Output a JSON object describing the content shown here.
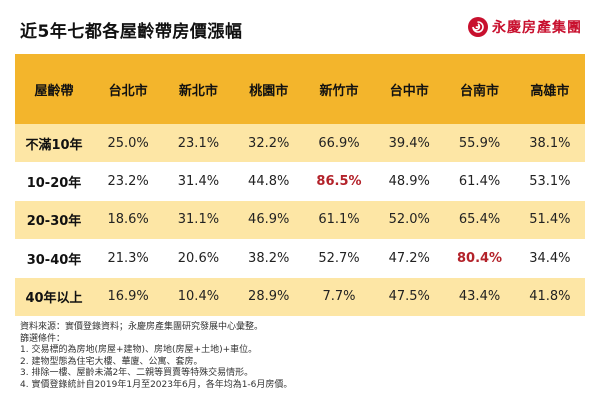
{
  "title": "近5年七都各屋齡帶房價漲幅",
  "brand": {
    "name": "永慶房產集團",
    "logo_icon": "swirl-logo-icon",
    "color": "#c8102e"
  },
  "table": {
    "headers": [
      "屋齡帶",
      "台北市",
      "新北市",
      "桃園市",
      "新竹市",
      "台中市",
      "台南市",
      "高雄市"
    ],
    "rows": [
      {
        "label": "不滿10年",
        "values": [
          "25.0%",
          "23.1%",
          "32.2%",
          "66.9%",
          "39.4%",
          "55.9%",
          "38.1%"
        ]
      },
      {
        "label": "10-20年",
        "values": [
          "23.2%",
          "31.4%",
          "44.8%",
          "86.5%",
          "48.9%",
          "61.4%",
          "53.1%"
        ]
      },
      {
        "label": "20-30年",
        "values": [
          "18.6%",
          "31.1%",
          "46.9%",
          "61.1%",
          "52.0%",
          "65.4%",
          "51.4%"
        ]
      },
      {
        "label": "30-40年",
        "values": [
          "21.3%",
          "20.6%",
          "38.2%",
          "52.7%",
          "47.2%",
          "80.4%",
          "34.4%"
        ]
      },
      {
        "label": "40年以上",
        "values": [
          "16.9%",
          "10.4%",
          "28.9%",
          "7.7%",
          "47.5%",
          "43.4%",
          "41.8%"
        ]
      }
    ],
    "header_color": "#f3b52c",
    "stripe_color": "#fde6a5",
    "highlight_color": "#b3222a"
  },
  "notes": [
    "資料來源：實價登錄資料；永慶房產集團研究發展中心彙整。",
    "篩選條件：",
    "1. 交易標的為房地(房屋+建物)、房地(房屋+土地)+車位。",
    "2. 建物型態為住宅大樓、華廈、公寓、套房。",
    "3. 排除一樓、屋齡未滿2年、二親等買賣等特殊交易情形。",
    "4. 實價登錄統計自2019年1月至2023年6月，各年均為1-6月房價。"
  ]
}
